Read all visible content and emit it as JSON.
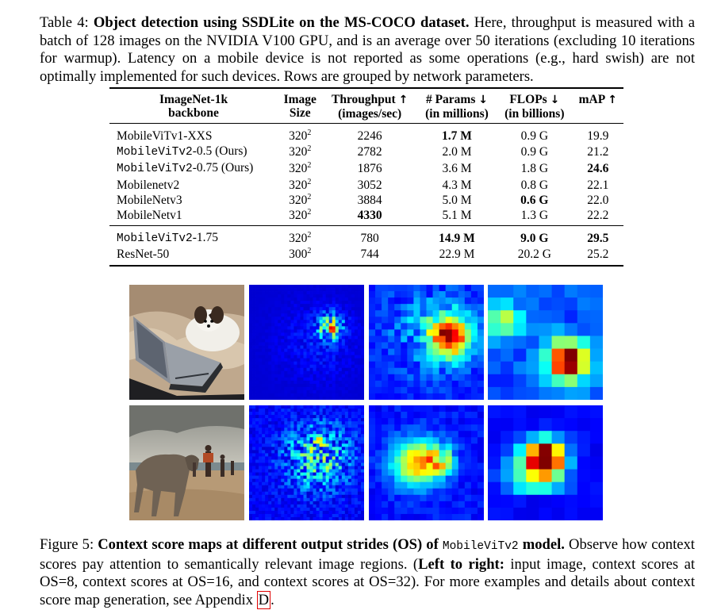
{
  "table": {
    "caption_label": "Table 4:",
    "caption_title": "Object detection using SSDLite on the MS-COCO dataset.",
    "caption_text": "Here, throughput is measured with a batch of 128 images on the NVIDIA V100 GPU, and is an average over 50 iterations (excluding 10 iterations for warmup). Latency on a mobile device is not reported as some operations (e.g., hard swish) are not optimally implemented for such devices. Rows are grouped by network parameters.",
    "headers": [
      {
        "line1": "ImageNet-1k",
        "line2": "backbone"
      },
      {
        "line1": "Image",
        "line2": "Size"
      },
      {
        "line1": "Throughput",
        "arrow": "↑",
        "line2": "(images/sec)"
      },
      {
        "line1": "# Params",
        "arrow": "↓",
        "line2": "(in millions)"
      },
      {
        "line1": "FLOPs",
        "arrow": "↓",
        "line2": "(in billions)"
      },
      {
        "line1": "mAP",
        "arrow": "↑",
        "line2": ""
      }
    ],
    "group1": [
      {
        "backbone": "MobileViTv1-XXS",
        "mono": false,
        "suffix": "",
        "size_base": "320",
        "size_exp": "2",
        "throughput": "2246",
        "params": "1.7 M",
        "flops": "0.9 G",
        "map": "19.9",
        "bold": [
          "params"
        ]
      },
      {
        "backbone": "MobileViTv2",
        "mono": true,
        "suffix": "-0.5 (Ours)",
        "size_base": "320",
        "size_exp": "2",
        "throughput": "2782",
        "params": "2.0 M",
        "flops": "0.9 G",
        "map": "21.2",
        "bold": []
      },
      {
        "backbone": "MobileViTv2",
        "mono": true,
        "suffix": "-0.75 (Ours)",
        "size_base": "320",
        "size_exp": "2",
        "throughput": "1876",
        "params": "3.6 M",
        "flops": "1.8 G",
        "map": "24.6",
        "bold": [
          "map"
        ]
      },
      {
        "backbone": "Mobilenetv2",
        "mono": false,
        "suffix": "",
        "size_base": "320",
        "size_exp": "2",
        "throughput": "3052",
        "params": "4.3 M",
        "flops": "0.8 G",
        "map": "22.1",
        "bold": []
      },
      {
        "backbone": "MobileNetv3",
        "mono": false,
        "suffix": "",
        "size_base": "320",
        "size_exp": "2",
        "throughput": "3884",
        "params": "5.0 M",
        "flops": "0.6 G",
        "map": "22.0",
        "bold": [
          "flops"
        ]
      },
      {
        "backbone": "MobileNetv1",
        "mono": false,
        "suffix": "",
        "size_base": "320",
        "size_exp": "2",
        "throughput": "4330",
        "params": "5.1 M",
        "flops": "1.3 G",
        "map": "22.2",
        "bold": [
          "throughput"
        ]
      }
    ],
    "group2": [
      {
        "backbone": "MobileViTv2",
        "mono": true,
        "suffix": "-1.75",
        "size_base": "320",
        "size_exp": "2",
        "throughput": "780",
        "params": "14.9 M",
        "flops": "9.0 G",
        "map": "29.5",
        "bold": [
          "params",
          "flops",
          "map"
        ]
      },
      {
        "backbone": "ResNet-50",
        "mono": false,
        "suffix": "",
        "size_base": "300",
        "size_exp": "2",
        "throughput": "744",
        "params": "22.9 M",
        "flops": "20.2 G",
        "map": "25.2",
        "bold": []
      }
    ]
  },
  "figure": {
    "caption_label": "Figure 5:",
    "caption_title_a": "Context score maps at different output strides (OS) of",
    "caption_title_mono": "MobileViTv2",
    "caption_title_b": "model.",
    "caption_text_a": "Observe how context scores pay attention to semantically relevant image regions. (",
    "caption_bold_lr": "Left to right:",
    "caption_text_b": "input image, context scores at OS=8, context scores at OS=16, and context scores at OS=32). For more examples and details about context score map generation, see Appendix",
    "caption_ref": "D",
    "caption_end": "."
  },
  "colors": {
    "heatmap_low": "#00007f",
    "heatmap_mid": "#00ffff",
    "heatmap_high": "#7f0000"
  }
}
